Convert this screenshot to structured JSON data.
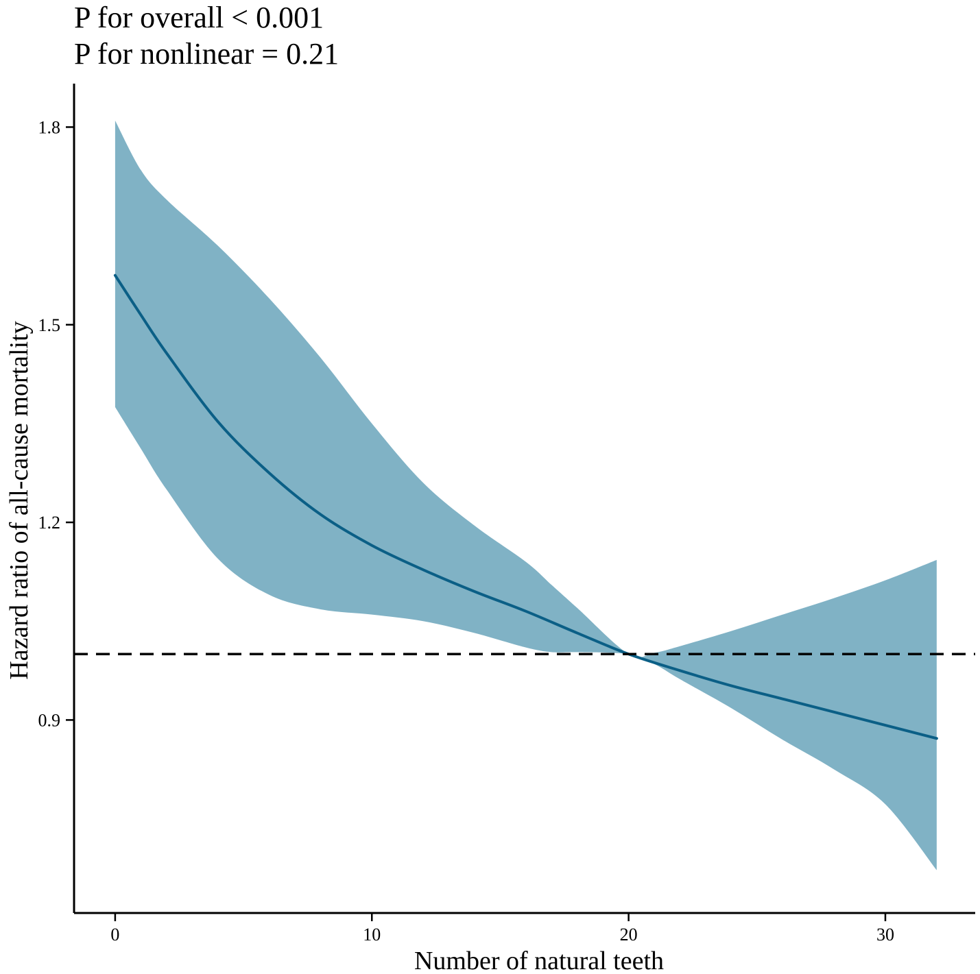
{
  "chart_data": {
    "type": "line",
    "title_lines": [
      "P for overall < 0.001",
      "P for nonlinear = 0.21"
    ],
    "xlabel": "Number of natural teeth",
    "ylabel": "Hazard ratio of all-cause mortality",
    "xlim": [
      -1.6,
      33.5
    ],
    "ylim": [
      0.607,
      1.866
    ],
    "xticks": [
      0,
      10,
      20,
      30
    ],
    "xtick_labels": [
      "0",
      "10",
      "20",
      "30"
    ],
    "yticks": [
      0.9,
      1.2,
      1.5,
      1.8
    ],
    "ytick_labels": [
      "0.9",
      "1.2",
      "1.5",
      "1.8"
    ],
    "reference_line": {
      "y": 1.0,
      "style": "dashed",
      "color": "#000000"
    },
    "grid": false,
    "colors": {
      "line": "#0b5f86",
      "band": "#80b2c5"
    },
    "series": [
      {
        "name": "Hazard ratio",
        "x": [
          0,
          1,
          2,
          4,
          6,
          8,
          10,
          12,
          14,
          16,
          18,
          20,
          22,
          24,
          26,
          28,
          30,
          32
        ],
        "y": [
          1.575,
          1.515,
          1.457,
          1.353,
          1.275,
          1.212,
          1.165,
          1.128,
          1.095,
          1.065,
          1.032,
          1.0,
          0.975,
          0.952,
          0.932,
          0.912,
          0.892,
          0.872
        ]
      }
    ],
    "confidence_band": {
      "name": "95% CI",
      "x": [
        0,
        1,
        2,
        4,
        6,
        8,
        10,
        12,
        14,
        16,
        17,
        18,
        20,
        21,
        22,
        24,
        26,
        28,
        30,
        32
      ],
      "upper": [
        1.81,
        1.735,
        1.69,
        1.62,
        1.54,
        1.45,
        1.35,
        1.26,
        1.195,
        1.14,
        1.105,
        1.07,
        1.0,
        1.002,
        1.012,
        1.035,
        1.06,
        1.085,
        1.112,
        1.143
      ],
      "lower": [
        1.375,
        1.312,
        1.25,
        1.145,
        1.09,
        1.068,
        1.06,
        1.05,
        1.032,
        1.01,
        1.003,
        1.003,
        1.0,
        0.985,
        0.962,
        0.918,
        0.87,
        0.825,
        0.772,
        0.672
      ]
    }
  }
}
